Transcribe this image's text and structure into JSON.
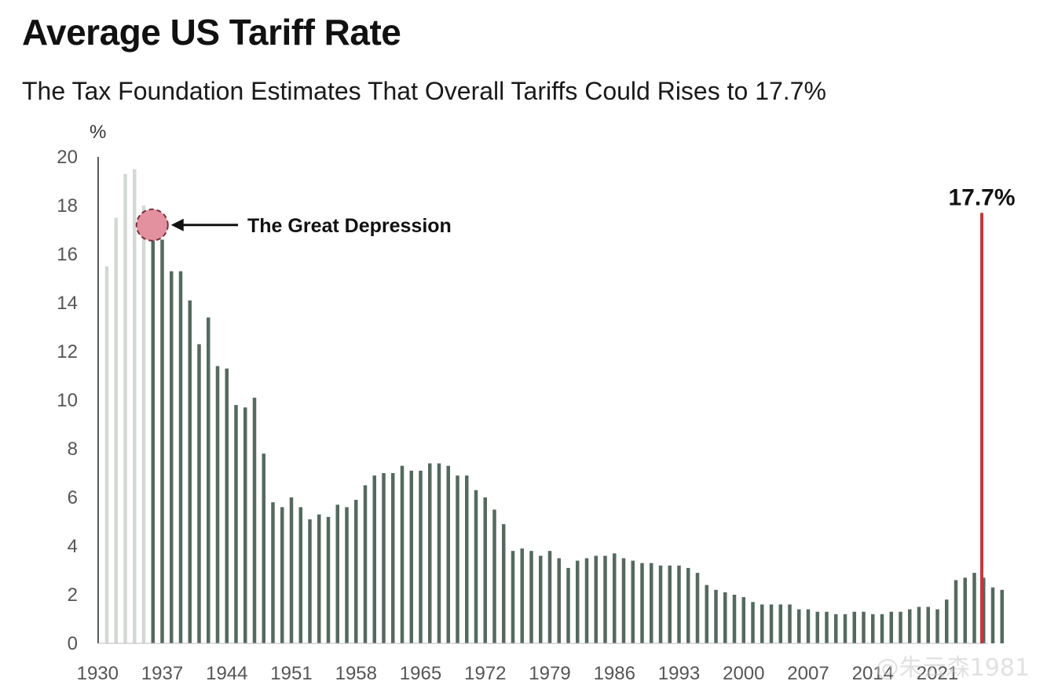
{
  "chart_data": {
    "type": "bar",
    "title": "Average US Tariff Rate",
    "subtitle": "The Tax Foundation Estimates That Overall Tariffs Could Rises to 17.7%",
    "ylabel": "%",
    "xlabel": "",
    "ylim": [
      0,
      20
    ],
    "yticks": [
      0,
      2,
      4,
      6,
      8,
      10,
      12,
      14,
      16,
      18,
      20
    ],
    "xticks": [
      "1930",
      "1937",
      "1944",
      "1951",
      "1958",
      "1965",
      "1972",
      "1979",
      "1986",
      "1993",
      "2000",
      "2007",
      "2014",
      "2021"
    ],
    "x_start": 1931,
    "values": [
      15.5,
      17.5,
      19.3,
      19.5,
      18.0,
      17.1,
      16.6,
      15.3,
      15.3,
      14.1,
      12.3,
      13.4,
      11.4,
      11.3,
      9.8,
      9.7,
      10.1,
      7.8,
      5.8,
      5.6,
      6.0,
      5.6,
      5.1,
      5.3,
      5.2,
      5.7,
      5.6,
      5.9,
      6.5,
      6.9,
      7.0,
      7.0,
      7.3,
      7.1,
      7.1,
      7.4,
      7.4,
      7.3,
      6.9,
      6.9,
      6.3,
      6.0,
      5.5,
      4.9,
      3.8,
      3.9,
      3.8,
      3.6,
      3.8,
      3.5,
      3.1,
      3.4,
      3.5,
      3.6,
      3.6,
      3.7,
      3.5,
      3.4,
      3.3,
      3.3,
      3.2,
      3.2,
      3.2,
      3.1,
      2.9,
      2.4,
      2.2,
      2.1,
      2.0,
      1.9,
      1.7,
      1.6,
      1.6,
      1.6,
      1.6,
      1.4,
      1.4,
      1.3,
      1.3,
      1.2,
      1.2,
      1.3,
      1.3,
      1.2,
      1.2,
      1.3,
      1.3,
      1.4,
      1.5,
      1.5,
      1.4,
      1.8,
      2.6,
      2.7,
      2.9,
      2.7,
      2.3,
      2.2
    ],
    "faded_count": 5,
    "highlight": {
      "value": 17.7,
      "label": "17.7%",
      "color": "#c23b3b"
    },
    "annotation": {
      "text": "The Great Depression",
      "value": 17.2,
      "bar_index": 5
    },
    "colors": {
      "bar": "#55695f",
      "faded": "#d3d8d4",
      "circle_fill": "#e3909f",
      "circle_stroke": "#7a3040"
    }
  },
  "watermark": "@朱云森1981"
}
